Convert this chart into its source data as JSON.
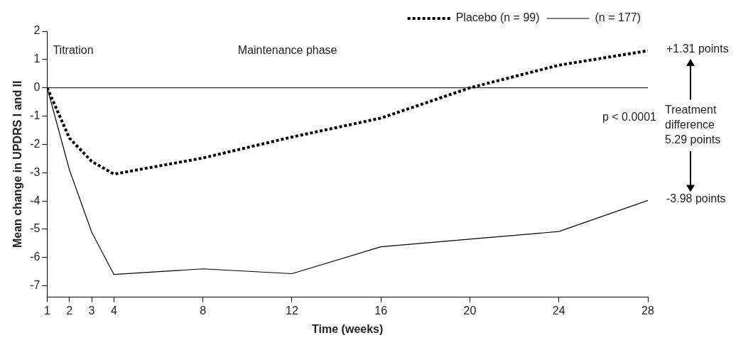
{
  "chart_data": {
    "type": "line",
    "xlabel": "Time (weeks)",
    "ylabel": "Mean change in UPDRS I and II",
    "x": [
      1,
      2,
      3,
      4,
      8,
      12,
      16,
      20,
      24,
      28
    ],
    "series": [
      {
        "name": "Placebo (n = 99)",
        "color": "#000000",
        "line_style": "dotted",
        "values": [
          0,
          -1.78,
          -2.6,
          -3.05,
          -2.48,
          -1.74,
          -1.07,
          0,
          0.8,
          1.31
        ]
      },
      {
        "name": "(n = 177)",
        "color": "#000000",
        "line_style": "solid",
        "values": [
          0,
          -2.9,
          -5.1,
          -6.6,
          -6.4,
          -6.57,
          -5.62,
          -5.35,
          -5.08,
          -3.98
        ]
      }
    ],
    "xlim": [
      1,
      28
    ],
    "xticks": [
      1,
      2,
      3,
      4,
      8,
      12,
      16,
      20,
      24,
      28
    ],
    "ylim": [
      -7.4,
      2
    ],
    "yticks": [
      -7,
      -6,
      -5,
      -4,
      -3,
      -2,
      -1,
      0,
      1,
      2
    ],
    "ref_lines": [
      {
        "axis": "y",
        "value": 0,
        "color": "#000000"
      }
    ],
    "legend": "top right",
    "marker": "none",
    "annotations": [
      "Titration",
      "Maintenance phase",
      "p < 0.0001",
      {
        "text": "+1.31 points",
        "x": 28,
        "y": 1.31
      },
      {
        "text": "-3.98 points",
        "x": 28,
        "y": -3.98
      },
      "Treatment difference 5.29 points"
    ]
  }
}
